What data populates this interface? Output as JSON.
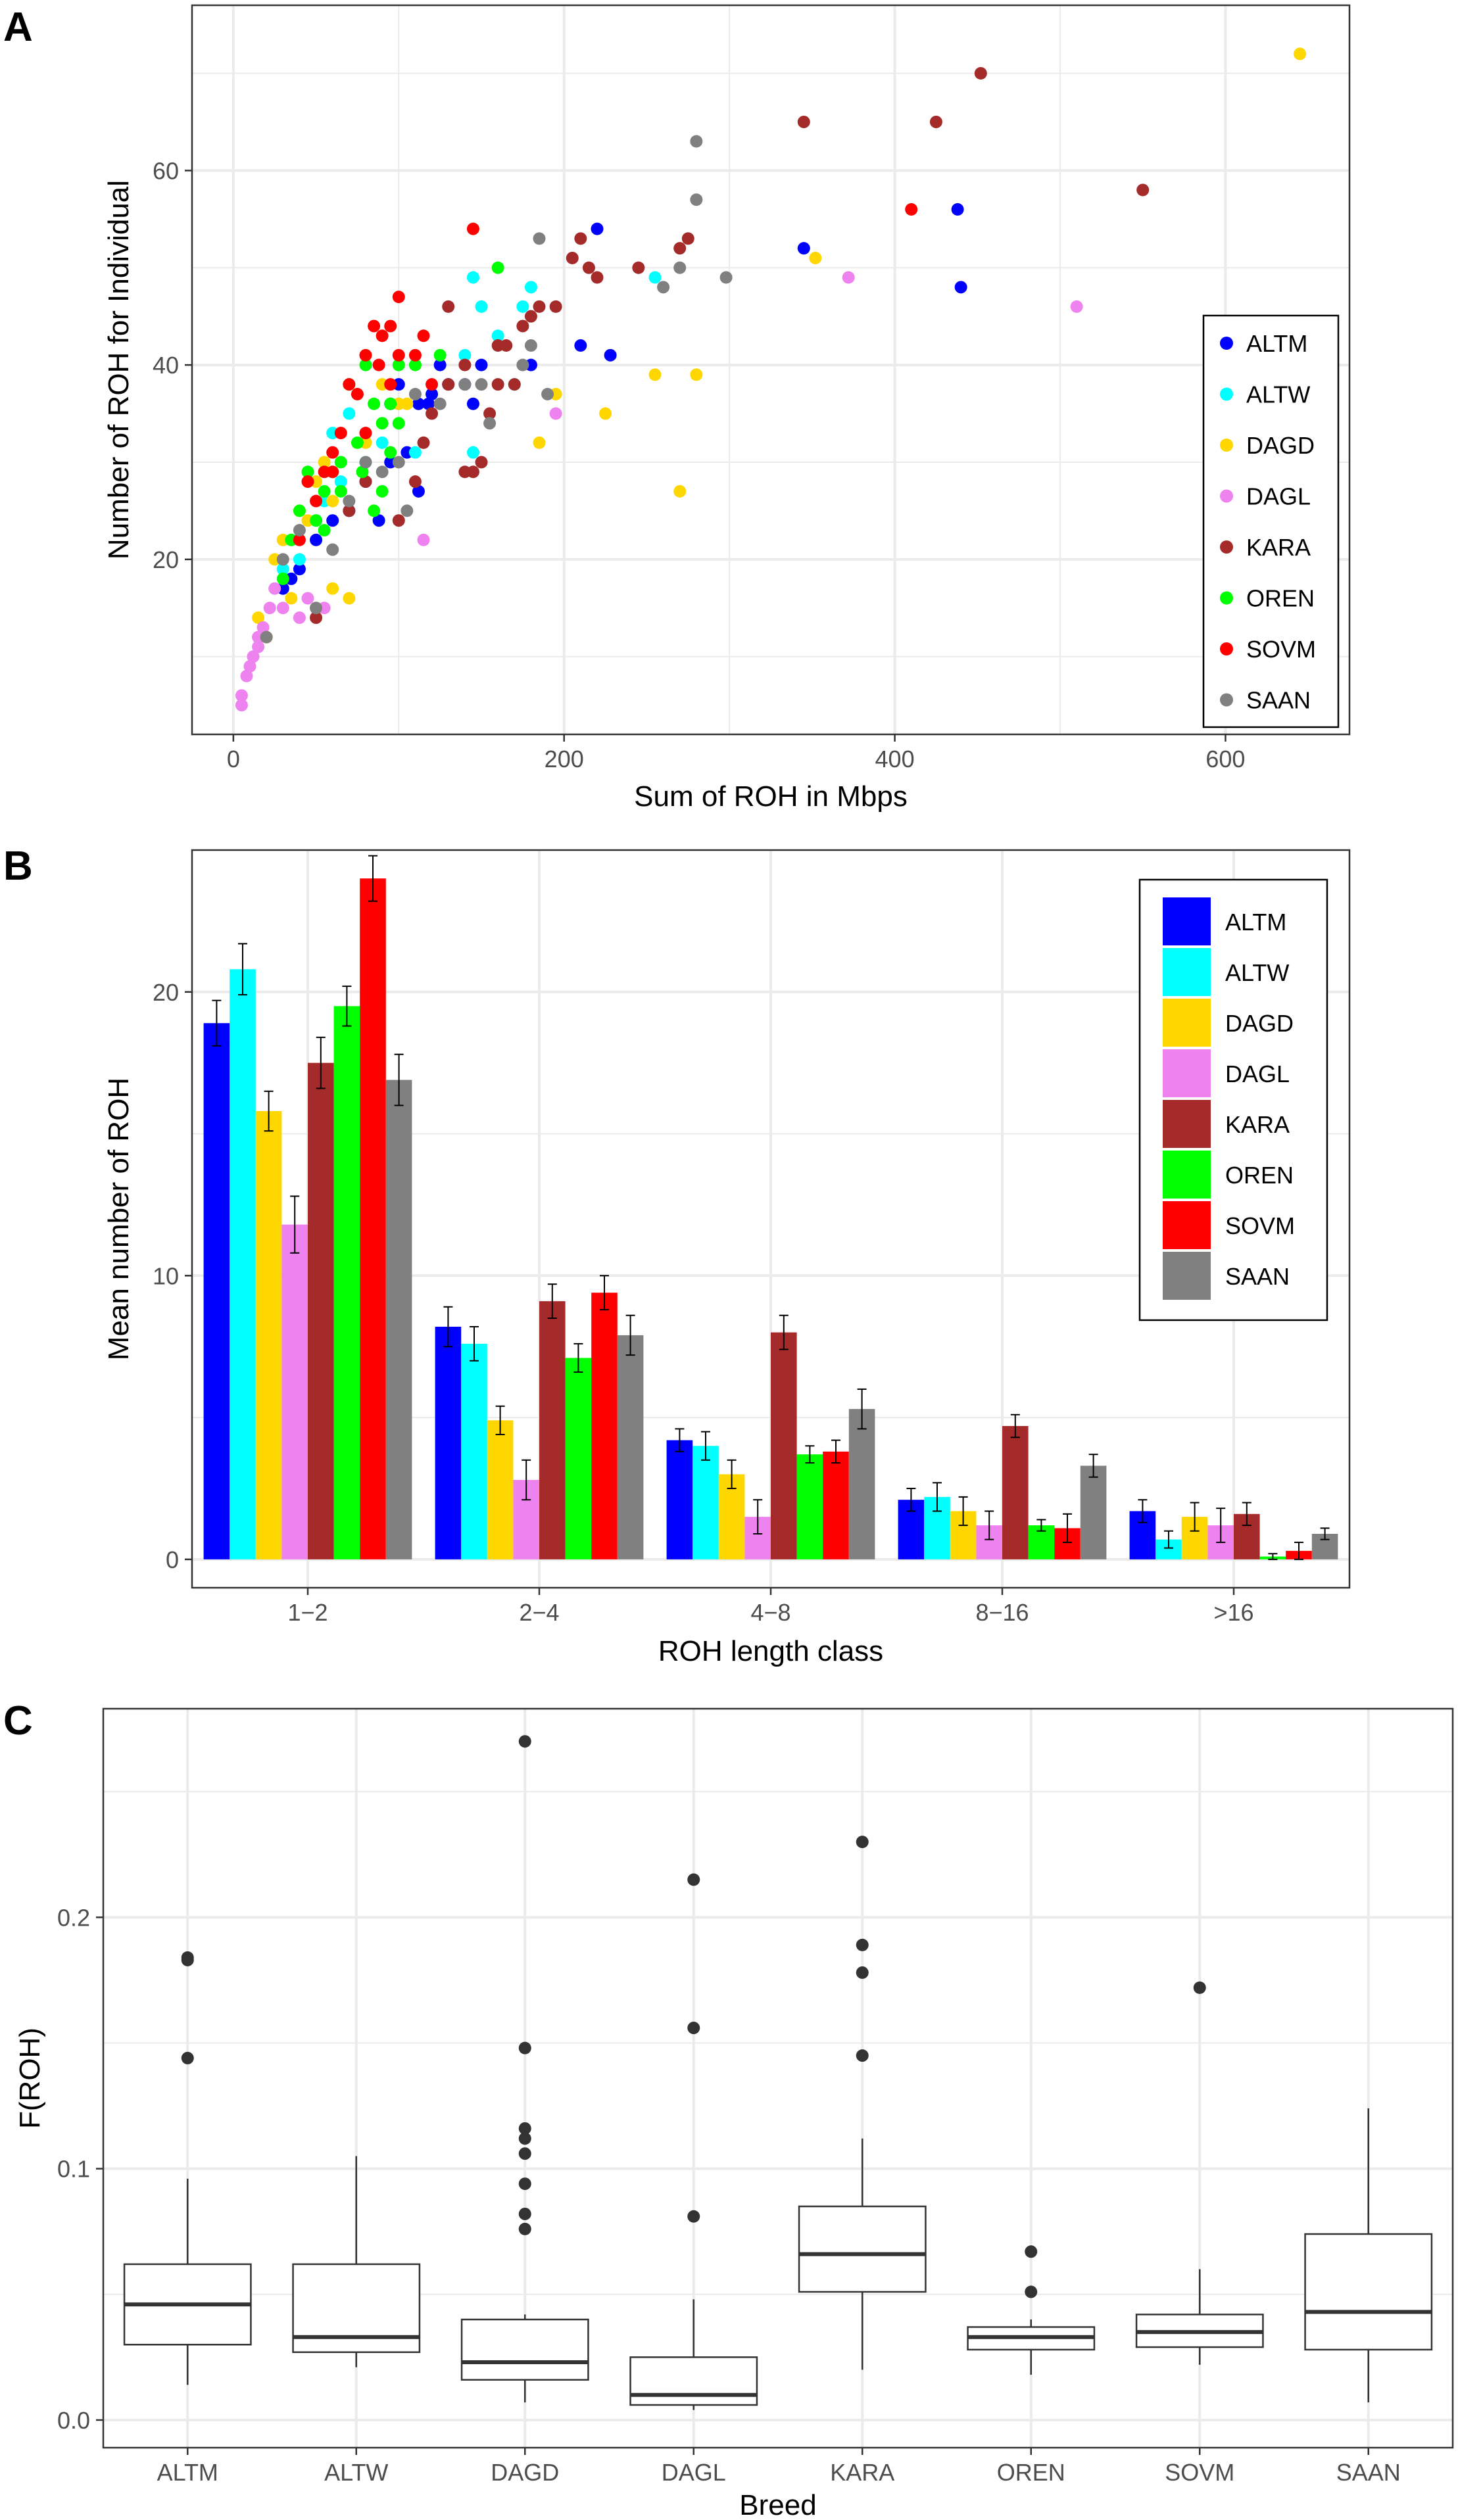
{
  "chart_data": [
    {
      "panel": "A",
      "type": "scatter",
      "xlabel": "Sum of ROH in Mbps",
      "ylabel": "Number of ROH for Individual",
      "xlim": [
        -25,
        675
      ],
      "ylim": [
        2,
        77
      ],
      "xticks": [
        0,
        200,
        400,
        600
      ],
      "yticks": [
        20,
        40,
        60
      ],
      "grid": true,
      "legend_position": "right",
      "series": [
        {
          "name": "ALTM",
          "color": "#0000FF",
          "points": [
            [
              220,
              54
            ],
            [
              345,
              52
            ],
            [
              438,
              56
            ],
            [
              440,
              48
            ],
            [
              210,
              42
            ],
            [
              228,
              41
            ],
            [
              180,
              40
            ],
            [
              150,
              40
            ],
            [
              125,
              40
            ],
            [
              120,
              37
            ],
            [
              100,
              38
            ],
            [
              95,
              36
            ],
            [
              112,
              36
            ],
            [
              140,
              38
            ],
            [
              95,
              30
            ],
            [
              80,
              28
            ],
            [
              70,
              25
            ],
            [
              60,
              24
            ],
            [
              50,
              22
            ],
            [
              40,
              19
            ],
            [
              35,
              18
            ],
            [
              30,
              17
            ],
            [
              88,
              24
            ],
            [
              112,
              27
            ],
            [
              145,
              36
            ],
            [
              105,
              31
            ],
            [
              118,
              36
            ],
            [
              130,
              38
            ]
          ]
        },
        {
          "name": "ALTW",
          "color": "#00FFFF",
          "points": [
            [
              145,
              49
            ],
            [
              150,
              46
            ],
            [
              175,
              46
            ],
            [
              180,
              48
            ],
            [
              140,
              41
            ],
            [
              145,
              31
            ],
            [
              60,
              33
            ],
            [
              70,
              35
            ],
            [
              80,
              30
            ],
            [
              90,
              32
            ],
            [
              55,
              26
            ],
            [
              50,
              24
            ],
            [
              40,
              20
            ],
            [
              30,
              19
            ],
            [
              110,
              31
            ],
            [
              160,
              43
            ],
            [
              170,
              38
            ],
            [
              255,
              49
            ],
            [
              100,
              36
            ],
            [
              65,
              28
            ]
          ]
        },
        {
          "name": "DAGD",
          "color": "#FFD700",
          "points": [
            [
              645,
              72
            ],
            [
              352,
              51
            ],
            [
              255,
              39
            ],
            [
              280,
              39
            ],
            [
              270,
              27
            ],
            [
              225,
              35
            ],
            [
              185,
              32
            ],
            [
              195,
              37
            ],
            [
              20,
              12
            ],
            [
              25,
              20
            ],
            [
              30,
              22
            ],
            [
              40,
              25
            ],
            [
              45,
              24
            ],
            [
              50,
              28
            ],
            [
              55,
              30
            ],
            [
              60,
              17
            ],
            [
              70,
              16
            ],
            [
              80,
              32
            ],
            [
              90,
              38
            ],
            [
              100,
              36
            ],
            [
              105,
              36
            ],
            [
              60,
              26
            ],
            [
              35,
              16
            ],
            [
              15,
              14
            ]
          ]
        },
        {
          "name": "DAGL",
          "color": "#EE82EE",
          "points": [
            [
              510,
              46
            ],
            [
              372,
              49
            ],
            [
              195,
              35
            ],
            [
              115,
              22
            ],
            [
              25,
              17
            ],
            [
              30,
              15
            ],
            [
              18,
              13
            ],
            [
              15,
              12
            ],
            [
              12,
              10
            ],
            [
              10,
              9
            ],
            [
              8,
              8
            ],
            [
              5,
              6
            ],
            [
              5,
              5
            ],
            [
              15,
              11
            ],
            [
              40,
              14
            ],
            [
              45,
              16
            ],
            [
              50,
              15
            ],
            [
              55,
              15
            ],
            [
              22,
              15
            ]
          ]
        },
        {
          "name": "KARA",
          "color": "#A52A2A",
          "points": [
            [
              452,
              70
            ],
            [
              425,
              65
            ],
            [
              345,
              65
            ],
            [
              550,
              58
            ],
            [
              275,
              53
            ],
            [
              270,
              52
            ],
            [
              245,
              50
            ],
            [
              205,
              51
            ],
            [
              210,
              53
            ],
            [
              220,
              49
            ],
            [
              215,
              50
            ],
            [
              185,
              46
            ],
            [
              175,
              44
            ],
            [
              160,
              42
            ],
            [
              140,
              40
            ],
            [
              130,
              38
            ],
            [
              120,
              35
            ],
            [
              115,
              32
            ],
            [
              150,
              30
            ],
            [
              145,
              29
            ],
            [
              140,
              29
            ],
            [
              100,
              24
            ],
            [
              80,
              28
            ],
            [
              70,
              25
            ],
            [
              50,
              14
            ],
            [
              130,
              46
            ],
            [
              180,
              45
            ],
            [
              165,
              42
            ],
            [
              195,
              46
            ],
            [
              155,
              35
            ],
            [
              160,
              38
            ],
            [
              170,
              38
            ],
            [
              110,
              28
            ]
          ]
        },
        {
          "name": "OREN",
          "color": "#00FF00",
          "points": [
            [
              160,
              50
            ],
            [
              125,
              41
            ],
            [
              100,
              40
            ],
            [
              95,
              36
            ],
            [
              90,
              34
            ],
            [
              85,
              36
            ],
            [
              80,
              40
            ],
            [
              70,
              38
            ],
            [
              75,
              32
            ],
            [
              65,
              30
            ],
            [
              60,
              29
            ],
            [
              55,
              27
            ],
            [
              50,
              24
            ],
            [
              45,
              29
            ],
            [
              40,
              25
            ],
            [
              35,
              22
            ],
            [
              30,
              18
            ],
            [
              85,
              25
            ],
            [
              90,
              27
            ],
            [
              100,
              34
            ],
            [
              110,
              40
            ],
            [
              95,
              31
            ],
            [
              65,
              27
            ],
            [
              55,
              23
            ],
            [
              78,
              29
            ]
          ]
        },
        {
          "name": "SOVM",
          "color": "#FF0000",
          "points": [
            [
              410,
              56
            ],
            [
              145,
              54
            ],
            [
              100,
              47
            ],
            [
              95,
              44
            ],
            [
              90,
              43
            ],
            [
              85,
              44
            ],
            [
              80,
              41
            ],
            [
              70,
              38
            ],
            [
              75,
              37
            ],
            [
              65,
              33
            ],
            [
              60,
              31
            ],
            [
              55,
              29
            ],
            [
              50,
              26
            ],
            [
              45,
              28
            ],
            [
              40,
              22
            ],
            [
              95,
              38
            ],
            [
              100,
              41
            ],
            [
              110,
              41
            ],
            [
              115,
              43
            ],
            [
              120,
              38
            ],
            [
              60,
              29
            ],
            [
              80,
              33
            ],
            [
              88,
              40
            ]
          ]
        },
        {
          "name": "SAAN",
          "color": "#808080",
          "points": [
            [
              280,
              63
            ],
            [
              280,
              57
            ],
            [
              298,
              49
            ],
            [
              260,
              48
            ],
            [
              270,
              50
            ],
            [
              185,
              53
            ],
            [
              180,
              42
            ],
            [
              175,
              40
            ],
            [
              190,
              37
            ],
            [
              150,
              38
            ],
            [
              140,
              38
            ],
            [
              125,
              36
            ],
            [
              110,
              37
            ],
            [
              100,
              30
            ],
            [
              105,
              25
            ],
            [
              90,
              29
            ],
            [
              80,
              30
            ],
            [
              70,
              26
            ],
            [
              60,
              21
            ],
            [
              50,
              15
            ],
            [
              40,
              23
            ],
            [
              30,
              20
            ],
            [
              20,
              12
            ],
            [
              155,
              34
            ]
          ]
        }
      ]
    },
    {
      "panel": "B",
      "type": "bar",
      "xlabel": "ROH length class",
      "ylabel": "Mean number of ROH",
      "ylim": [
        -1.0,
        25.0
      ],
      "yticks": [
        0,
        10,
        20
      ],
      "grid": true,
      "legend_position": "top-right",
      "categories": [
        "1−2",
        "2−4",
        "4−8",
        "8−16",
        ">16"
      ],
      "series": [
        {
          "name": "ALTM",
          "color": "#0000FF",
          "values": [
            18.9,
            8.2,
            4.2,
            2.1,
            1.7
          ],
          "errors": [
            0.8,
            0.7,
            0.4,
            0.4,
            0.4
          ]
        },
        {
          "name": "ALTW",
          "color": "#00FFFF",
          "values": [
            20.8,
            7.6,
            4.0,
            2.2,
            0.7
          ],
          "errors": [
            0.9,
            0.6,
            0.5,
            0.5,
            0.3
          ]
        },
        {
          "name": "DAGD",
          "color": "#FFD700",
          "values": [
            15.8,
            4.9,
            3.0,
            1.7,
            1.5
          ],
          "errors": [
            0.7,
            0.5,
            0.5,
            0.5,
            0.5
          ]
        },
        {
          "name": "DAGL",
          "color": "#EE82EE",
          "values": [
            11.8,
            2.8,
            1.5,
            1.2,
            1.2
          ],
          "errors": [
            1.0,
            0.7,
            0.6,
            0.5,
            0.6
          ]
        },
        {
          "name": "KARA",
          "color": "#A52A2A",
          "values": [
            17.5,
            9.1,
            8.0,
            4.7,
            1.6
          ],
          "errors": [
            0.9,
            0.6,
            0.6,
            0.4,
            0.4
          ]
        },
        {
          "name": "OREN",
          "color": "#00FF00",
          "values": [
            19.5,
            7.1,
            3.7,
            1.2,
            0.1
          ],
          "errors": [
            0.7,
            0.5,
            0.3,
            0.2,
            0.1
          ]
        },
        {
          "name": "SOVM",
          "color": "#FF0000",
          "values": [
            24.0,
            9.4,
            3.8,
            1.1,
            0.3
          ],
          "errors": [
            0.8,
            0.6,
            0.4,
            0.5,
            0.3
          ]
        },
        {
          "name": "SAAN",
          "color": "#808080",
          "values": [
            16.9,
            7.9,
            5.3,
            3.3,
            0.9
          ],
          "errors": [
            0.9,
            0.7,
            0.7,
            0.4,
            0.2
          ]
        }
      ]
    },
    {
      "panel": "C",
      "type": "box",
      "xlabel": "Breed",
      "ylabel": "F(ROH)",
      "ylim": [
        -0.011,
        0.283
      ],
      "yticks": [
        0.0,
        0.1,
        0.2
      ],
      "ytick_labels": [
        "0.0",
        "0.1",
        "0.2"
      ],
      "grid": true,
      "boxes": [
        {
          "name": "ALTM",
          "whisker_low": 0.014,
          "q1": 0.03,
          "median": 0.046,
          "q3": 0.062,
          "whisker_high": 0.096,
          "outliers": [
            0.144,
            0.183,
            0.184
          ]
        },
        {
          "name": "ALTW",
          "whisker_low": 0.021,
          "q1": 0.027,
          "median": 0.033,
          "q3": 0.062,
          "whisker_high": 0.105,
          "outliers": []
        },
        {
          "name": "DAGD",
          "whisker_low": 0.007,
          "q1": 0.016,
          "median": 0.023,
          "q3": 0.04,
          "whisker_high": 0.042,
          "outliers": [
            0.076,
            0.082,
            0.094,
            0.106,
            0.112,
            0.116,
            0.148,
            0.27
          ]
        },
        {
          "name": "DAGL",
          "whisker_low": 0.004,
          "q1": 0.006,
          "median": 0.01,
          "q3": 0.025,
          "whisker_high": 0.048,
          "outliers": [
            0.081,
            0.156,
            0.215
          ]
        },
        {
          "name": "KARA",
          "whisker_low": 0.02,
          "q1": 0.051,
          "median": 0.066,
          "q3": 0.085,
          "whisker_high": 0.112,
          "outliers": [
            0.145,
            0.178,
            0.189,
            0.23
          ]
        },
        {
          "name": "OREN",
          "whisker_low": 0.018,
          "q1": 0.028,
          "median": 0.033,
          "q3": 0.037,
          "whisker_high": 0.04,
          "outliers": [
            0.051,
            0.067
          ]
        },
        {
          "name": "SOVM",
          "whisker_low": 0.022,
          "q1": 0.029,
          "median": 0.035,
          "q3": 0.042,
          "whisker_high": 0.06,
          "outliers": [
            0.172
          ]
        },
        {
          "name": "SAAN",
          "whisker_low": 0.007,
          "q1": 0.028,
          "median": 0.043,
          "q3": 0.074,
          "whisker_high": 0.124,
          "outliers": []
        }
      ]
    }
  ]
}
